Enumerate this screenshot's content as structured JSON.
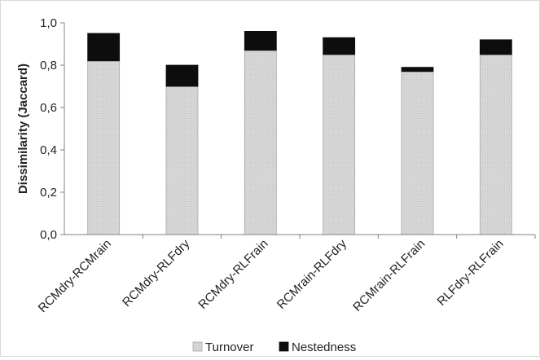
{
  "chart_data": {
    "type": "bar",
    "stacked": true,
    "categories": [
      "RCMdry-RCMrain",
      "RCMdry-RLFdry",
      "RCMdry-RLFrain",
      "RCMrain-RLFdry",
      "RCMrain-RLFrain",
      "RLFdry-RLFrain"
    ],
    "series": [
      {
        "name": "Turnover",
        "values": [
          0.82,
          0.7,
          0.87,
          0.85,
          0.77,
          0.85
        ],
        "color": "#d9d9d9"
      },
      {
        "name": "Nestedness",
        "values": [
          0.13,
          0.1,
          0.09,
          0.08,
          0.02,
          0.07
        ],
        "color": "#0d0d0d"
      }
    ],
    "title": "",
    "xlabel": "",
    "ylabel": "Dissimilarity (Jaccard)",
    "ylim": [
      0,
      1
    ],
    "yticks": [
      "0,0",
      "0,2",
      "0,4",
      "0,6",
      "0,8",
      "1,0"
    ],
    "grid": false,
    "legend_position": "bottom"
  }
}
